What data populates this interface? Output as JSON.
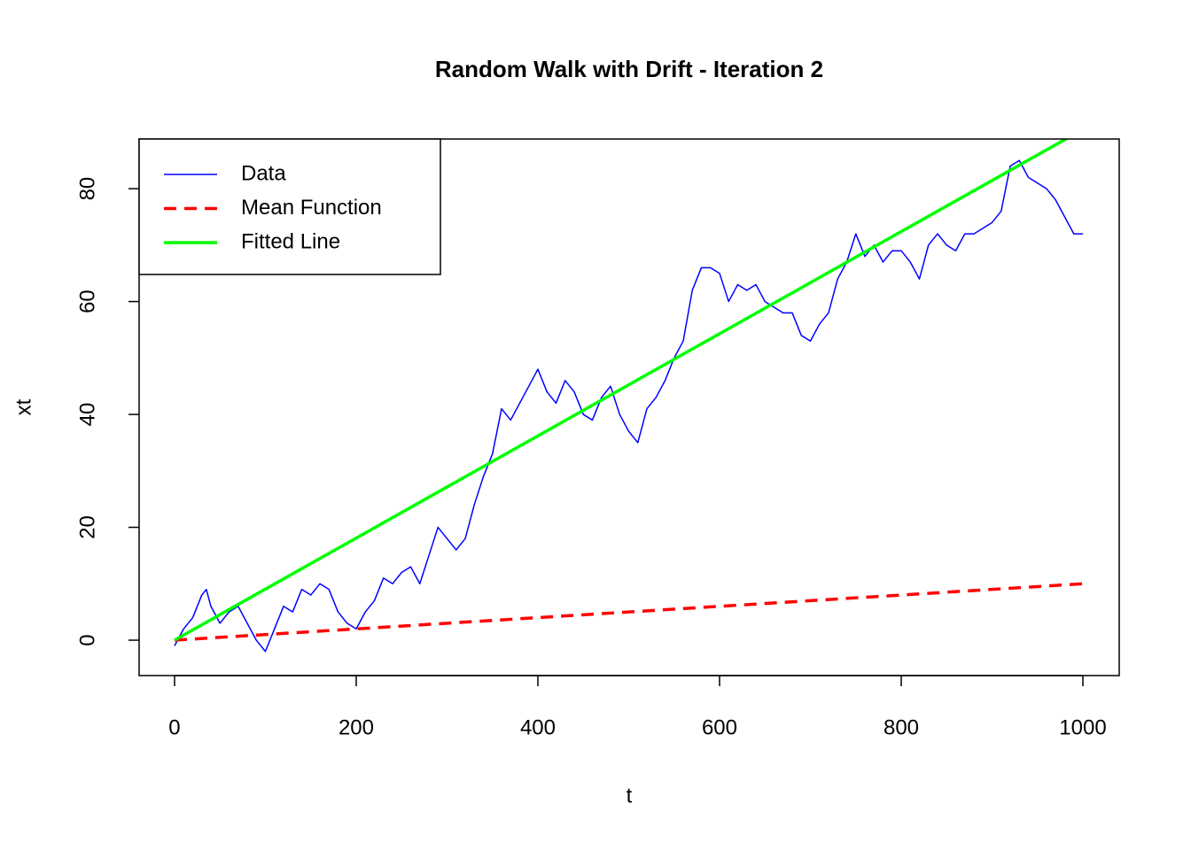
{
  "chart_data": {
    "type": "line",
    "title": "Random Walk with Drift - Iteration 2",
    "x_label": "t",
    "y_label": "xt",
    "xlim": [
      -39,
      1040
    ],
    "ylim": [
      -6.27,
      88.8
    ],
    "xticks": [
      0,
      200,
      400,
      600,
      800,
      1000
    ],
    "yticks": [
      0,
      20,
      40,
      60,
      80
    ],
    "legend": "top-left",
    "series": [
      {
        "name": "Data",
        "color": "#0000ff",
        "width": 1.5,
        "linestyle": "solid",
        "x": [
          0,
          10,
          20,
          30,
          35,
          40,
          50,
          60,
          70,
          80,
          90,
          100,
          110,
          120,
          130,
          140,
          150,
          160,
          170,
          180,
          190,
          200,
          210,
          220,
          230,
          240,
          250,
          260,
          270,
          280,
          290,
          300,
          310,
          320,
          330,
          340,
          350,
          360,
          370,
          380,
          390,
          400,
          410,
          420,
          430,
          440,
          450,
          460,
          470,
          480,
          490,
          500,
          510,
          520,
          530,
          540,
          550,
          560,
          570,
          580,
          590,
          600,
          610,
          620,
          630,
          640,
          650,
          660,
          670,
          680,
          690,
          700,
          710,
          720,
          730,
          740,
          750,
          760,
          770,
          780,
          790,
          800,
          810,
          820,
          830,
          840,
          850,
          860,
          870,
          880,
          890,
          900,
          910,
          920,
          930,
          940,
          950,
          960,
          970,
          980,
          990,
          1000
        ],
        "values": [
          -1,
          2,
          4,
          8,
          9,
          6,
          3,
          5,
          6,
          3,
          0,
          -2,
          2,
          6,
          5,
          9,
          8,
          10,
          9,
          5,
          3,
          2,
          5,
          7,
          11,
          10,
          12,
          13,
          10,
          15,
          20,
          18,
          16,
          18,
          24,
          29,
          33,
          41,
          39,
          42,
          45,
          48,
          44,
          42,
          46,
          44,
          40,
          39,
          43,
          45,
          40,
          37,
          35,
          41,
          43,
          46,
          50,
          53,
          62,
          66,
          66,
          65,
          60,
          63,
          62,
          63,
          60,
          59,
          58,
          58,
          54,
          53,
          56,
          58,
          64,
          67,
          72,
          68,
          70,
          67,
          69,
          69,
          67,
          64,
          70,
          72,
          70,
          69,
          72,
          72,
          73,
          74,
          76,
          84,
          85,
          82,
          81,
          80,
          78,
          75,
          72,
          72
        ]
      },
      {
        "name": "Mean Function",
        "color": "#ff0000",
        "width": 3.5,
        "linestyle": "dashed",
        "x": [
          0,
          1000
        ],
        "values": [
          0,
          10
        ]
      },
      {
        "name": "Fitted Line",
        "color": "#00ff00",
        "width": 3.5,
        "linestyle": "solid",
        "x": [
          0,
          1000
        ],
        "values": [
          0,
          90.5
        ]
      }
    ]
  }
}
